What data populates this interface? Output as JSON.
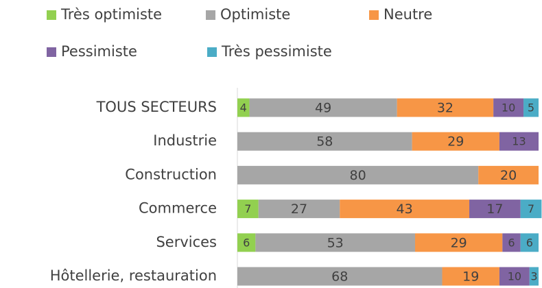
{
  "chart_data": {
    "type": "stacked-bar-horizontal",
    "categories": [
      "TOUS SECTEURS",
      "Industrie",
      "Construction",
      "Commerce",
      "Services",
      "Hôtellerie, restauration"
    ],
    "series": [
      {
        "name": "Très optimiste",
        "color": "#92d050",
        "values": [
          4,
          null,
          null,
          7,
          6,
          null
        ]
      },
      {
        "name": "Optimiste",
        "color": "#a6a6a6",
        "values": [
          49,
          58,
          80,
          27,
          53,
          68
        ]
      },
      {
        "name": "Neutre",
        "color": "#f79646",
        "values": [
          32,
          29,
          20,
          43,
          29,
          19
        ]
      },
      {
        "name": "Pessimiste",
        "color": "#8064a2",
        "values": [
          10,
          13,
          null,
          17,
          6,
          10
        ]
      },
      {
        "name": "Très pessimiste",
        "color": "#4bacc6",
        "values": [
          5,
          null,
          null,
          7,
          6,
          3
        ]
      }
    ],
    "xlim": [
      0,
      100
    ],
    "legend": "top"
  }
}
